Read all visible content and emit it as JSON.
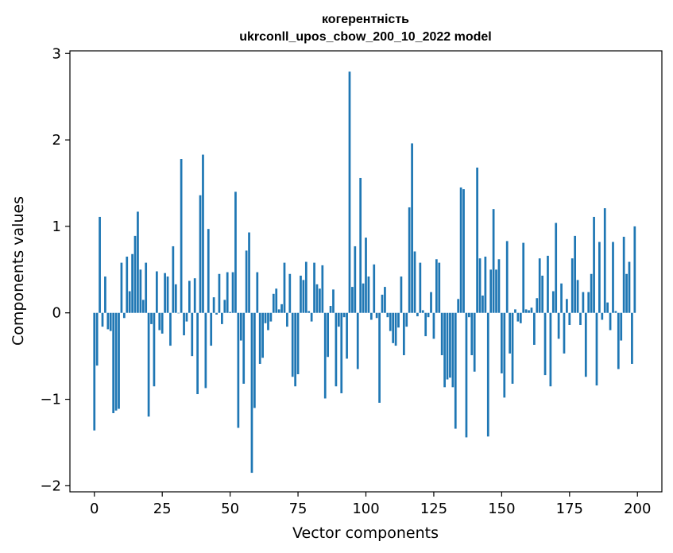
{
  "chart_data": {
    "type": "bar",
    "title_line1": "когерентність",
    "title_line2": "ukrconll_upos_cbow_200_10_2022 model",
    "xlabel": "Vector components",
    "ylabel": "Components values",
    "xlim": [
      -9,
      209
    ],
    "ylim": [
      -2.07,
      3.03
    ],
    "xticks": [
      0,
      25,
      50,
      75,
      100,
      125,
      150,
      175,
      200
    ],
    "xtick_labels": [
      "0",
      "25",
      "50",
      "75",
      "100",
      "125",
      "150",
      "175",
      "200"
    ],
    "yticks": [
      -2,
      -1,
      0,
      1,
      2,
      3
    ],
    "ytick_labels": [
      "−2",
      "−1",
      "0",
      "1",
      "2",
      "3"
    ],
    "grid": false,
    "bar_color": "#1f77b4",
    "x": [
      0,
      1,
      2,
      3,
      4,
      5,
      6,
      7,
      8,
      9,
      10,
      11,
      12,
      13,
      14,
      15,
      16,
      17,
      18,
      19,
      20,
      21,
      22,
      23,
      24,
      25,
      26,
      27,
      28,
      29,
      30,
      31,
      32,
      33,
      34,
      35,
      36,
      37,
      38,
      39,
      40,
      41,
      42,
      43,
      44,
      45,
      46,
      47,
      48,
      49,
      50,
      51,
      52,
      53,
      54,
      55,
      56,
      57,
      58,
      59,
      60,
      61,
      62,
      63,
      64,
      65,
      66,
      67,
      68,
      69,
      70,
      71,
      72,
      73,
      74,
      75,
      76,
      77,
      78,
      79,
      80,
      81,
      82,
      83,
      84,
      85,
      86,
      87,
      88,
      89,
      90,
      91,
      92,
      93,
      94,
      95,
      96,
      97,
      98,
      99,
      100,
      101,
      102,
      103,
      104,
      105,
      106,
      107,
      108,
      109,
      110,
      111,
      112,
      113,
      114,
      115,
      116,
      117,
      118,
      119,
      120,
      121,
      122,
      123,
      124,
      125,
      126,
      127,
      128,
      129,
      130,
      131,
      132,
      133,
      134,
      135,
      136,
      137,
      138,
      139,
      140,
      141,
      142,
      143,
      144,
      145,
      146,
      147,
      148,
      149,
      150,
      151,
      152,
      153,
      154,
      155,
      156,
      157,
      158,
      159,
      160,
      161,
      162,
      163,
      164,
      165,
      166,
      167,
      168,
      169,
      170,
      171,
      172,
      173,
      174,
      175,
      176,
      177,
      178,
      179,
      180,
      181,
      182,
      183,
      184,
      185,
      186,
      187,
      188,
      189,
      190,
      191,
      192,
      193,
      194,
      195,
      196,
      197,
      198,
      199
    ],
    "values": [
      -1.36,
      -0.61,
      1.11,
      -0.16,
      0.42,
      -0.19,
      -0.21,
      -1.16,
      -1.13,
      -1.11,
      0.58,
      -0.06,
      0.65,
      0.25,
      0.68,
      0.89,
      1.17,
      0.5,
      0.15,
      0.58,
      -1.2,
      -0.13,
      -0.85,
      0.48,
      -0.2,
      -0.24,
      0.46,
      0.42,
      -0.38,
      0.77,
      0.33,
      0.0,
      1.78,
      -0.26,
      -0.1,
      0.37,
      -0.5,
      0.4,
      -0.94,
      1.36,
      1.83,
      -0.87,
      0.97,
      -0.38,
      0.18,
      -0.02,
      0.45,
      -0.13,
      0.15,
      0.47,
      0.01,
      0.47,
      1.4,
      -1.33,
      -0.32,
      -0.82,
      0.72,
      0.93,
      -1.85,
      -1.1,
      0.47,
      -0.59,
      -0.52,
      -0.12,
      -0.2,
      -0.1,
      0.22,
      0.28,
      0.04,
      0.1,
      0.58,
      -0.16,
      0.45,
      -0.74,
      -0.85,
      -0.71,
      0.43,
      0.38,
      0.59,
      0.02,
      -0.1,
      0.58,
      0.33,
      0.28,
      0.55,
      -0.99,
      -0.51,
      0.08,
      0.27,
      -0.85,
      -0.16,
      -0.93,
      -0.05,
      -0.53,
      2.79,
      0.3,
      0.77,
      -0.65,
      1.56,
      0.34,
      0.87,
      0.42,
      -0.08,
      0.56,
      -0.06,
      -1.04,
      0.21,
      0.3,
      -0.05,
      -0.21,
      -0.35,
      -0.38,
      -0.17,
      0.42,
      -0.49,
      -0.16,
      1.22,
      1.96,
      0.71,
      -0.04,
      0.58,
      0.03,
      -0.27,
      -0.05,
      0.24,
      -0.3,
      0.62,
      0.58,
      -0.49,
      -0.86,
      -0.77,
      -0.75,
      -0.86,
      -1.34,
      0.16,
      1.45,
      1.43,
      -1.44,
      -0.05,
      -0.49,
      -0.68,
      1.68,
      0.63,
      0.2,
      0.65,
      -1.43,
      0.5,
      1.2,
      0.5,
      0.62,
      -0.7,
      -0.98,
      0.83,
      -0.47,
      -0.82,
      0.04,
      -0.1,
      -0.12,
      0.81,
      0.04,
      0.03,
      0.06,
      -0.37,
      0.17,
      0.63,
      0.43,
      -0.72,
      0.66,
      -0.85,
      0.25,
      1.04,
      -0.3,
      0.34,
      -0.47,
      0.16,
      -0.14,
      0.63,
      0.89,
      0.38,
      -0.14,
      0.24,
      -0.74,
      0.24,
      0.45,
      1.11,
      -0.84,
      0.82,
      -0.08,
      1.21,
      0.12,
      -0.2,
      0.82,
      0.02,
      -0.65,
      -0.32,
      0.88,
      0.45,
      0.59,
      -0.59,
      1.0
    ]
  }
}
